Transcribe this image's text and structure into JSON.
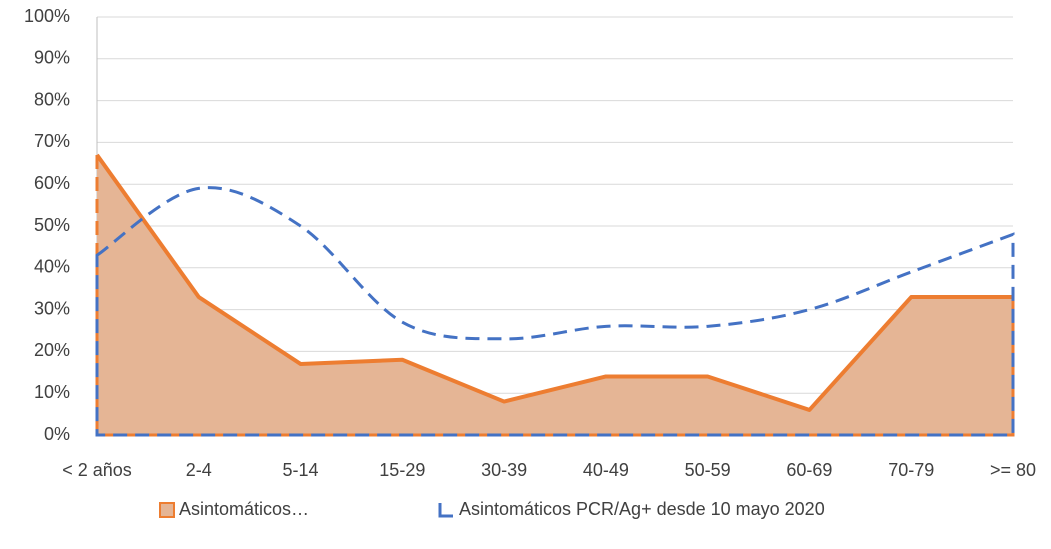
{
  "chart_data": {
    "type": "area",
    "categories": [
      "< 2 años",
      "2-4",
      "5-14",
      "15-29",
      "30-39",
      "40-49",
      "50-59",
      "60-69",
      "70-79",
      ">= 80"
    ],
    "series": [
      {
        "name": "Asintomáticos…",
        "color": "#ed7d31",
        "fill": "#e5b595",
        "smooth": false,
        "dashed": false,
        "values": [
          67,
          33,
          17,
          18,
          8,
          14,
          14,
          6,
          33,
          33
        ]
      },
      {
        "name": "Asintomáticos PCR/Ag+ desde 10 mayo 2020",
        "color": "#4472c4",
        "fill": "none",
        "smooth": true,
        "dashed": true,
        "values": [
          43,
          59,
          50,
          27,
          23,
          26,
          26,
          30,
          39,
          48
        ]
      }
    ],
    "ylim": [
      0,
      100
    ],
    "yticks": [
      {
        "value": 0,
        "label": "0%"
      },
      {
        "value": 10,
        "label": "10%"
      },
      {
        "value": 20,
        "label": "20%"
      },
      {
        "value": 30,
        "label": "30%"
      },
      {
        "value": 40,
        "label": "40%"
      },
      {
        "value": 50,
        "label": "50%"
      },
      {
        "value": 60,
        "label": "60%"
      },
      {
        "value": 70,
        "label": "70%"
      },
      {
        "value": 80,
        "label": "80%"
      },
      {
        "value": 90,
        "label": "90%"
      },
      {
        "value": 100,
        "label": "100%"
      }
    ],
    "grid": true,
    "legend": "bottom"
  }
}
